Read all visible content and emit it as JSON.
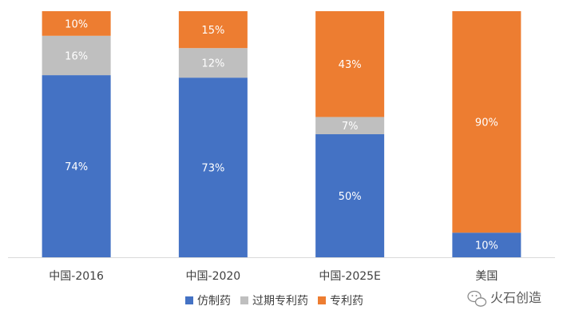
{
  "chart_data": {
    "type": "bar",
    "stacked": true,
    "normalized": true,
    "categories": [
      "中国-2016",
      "中国-2020",
      "中国-2025E",
      "美国"
    ],
    "series": [
      {
        "name": "仿制药",
        "color": "#4472C4",
        "values": [
          74,
          73,
          50,
          10
        ],
        "labels": [
          "74%",
          "73%",
          "50%",
          "10%"
        ]
      },
      {
        "name": "过期专利药",
        "color": "#BFBFBF",
        "values": [
          16,
          12,
          7,
          0
        ],
        "labels": [
          "16%",
          "12%",
          "7%",
          ""
        ]
      },
      {
        "name": "专利药",
        "color": "#ED7D31",
        "values": [
          10,
          15,
          43,
          90
        ],
        "labels": [
          "10%",
          "15%",
          "43%",
          "90%"
        ]
      }
    ],
    "ylim": [
      0,
      100
    ],
    "grid": false,
    "legend_position": "bottom"
  },
  "watermark": {
    "text": "火石创造",
    "icon": "wechat-icon"
  }
}
